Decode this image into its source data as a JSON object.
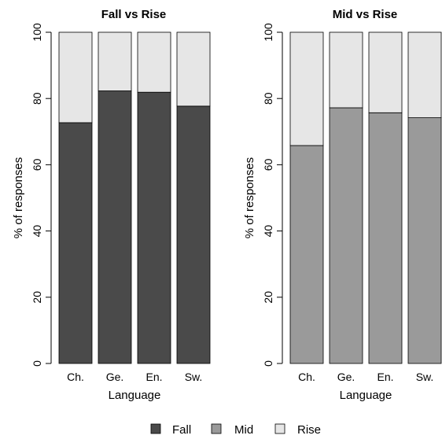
{
  "chart_data": [
    {
      "type": "bar",
      "stacked": true,
      "title": "Fall vs Rise",
      "xlabel": "Language",
      "ylabel": "% of responses",
      "ylim": [
        0,
        100
      ],
      "yticks": [
        "0",
        "20",
        "40",
        "60",
        "80",
        "100"
      ],
      "categories": [
        "Ch.",
        "Ge.",
        "En.",
        "Sw."
      ],
      "series": [
        {
          "name": "Fall",
          "color": "#4a4a4a",
          "values": [
            72.7,
            82.3,
            81.9,
            77.7
          ]
        },
        {
          "name": "Rise",
          "color": "#e6e6e6",
          "values": [
            27.3,
            17.7,
            18.1,
            22.3
          ]
        }
      ]
    },
    {
      "type": "bar",
      "stacked": true,
      "title": "Mid vs Rise",
      "xlabel": "Language",
      "ylabel": "% of responses",
      "ylim": [
        0,
        100
      ],
      "yticks": [
        "0",
        "20",
        "40",
        "60",
        "80",
        "100"
      ],
      "categories": [
        "Ch.",
        "Ge.",
        "En.",
        "Sw."
      ],
      "series": [
        {
          "name": "Mid",
          "color": "#9a9a9a",
          "values": [
            65.8,
            77.2,
            75.7,
            74.2
          ]
        },
        {
          "name": "Rise",
          "color": "#e6e6e6",
          "values": [
            34.2,
            22.8,
            24.3,
            25.8
          ]
        }
      ]
    }
  ],
  "legend": {
    "placement": "bottom-center",
    "items": [
      {
        "label": "Fall",
        "color": "#4a4a4a"
      },
      {
        "label": "Mid",
        "color": "#9a9a9a"
      },
      {
        "label": "Rise",
        "color": "#e6e6e6"
      }
    ]
  }
}
